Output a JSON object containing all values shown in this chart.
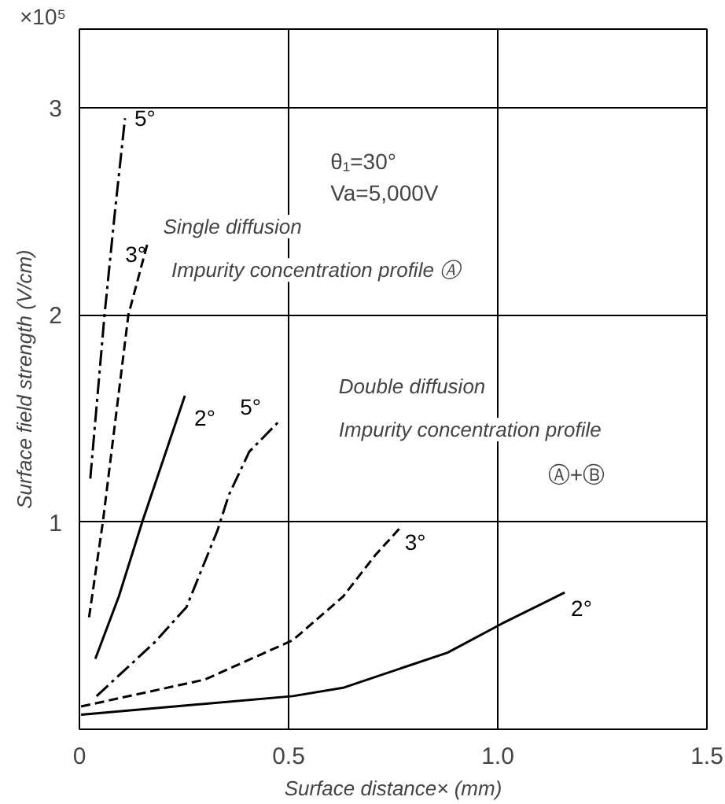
{
  "chart_data": {
    "type": "line",
    "xlabel": "Surface distance× (mm)",
    "ylabel": "Surface field strength (V/cm)",
    "xlim": [
      0,
      1.5
    ],
    "ylim": [
      0,
      3.38
    ],
    "xticks": [
      0,
      0.5,
      {
        "value": 1.0,
        "label": "1.0"
      },
      1.5
    ],
    "yticks": [
      1,
      2,
      3
    ],
    "grid": true,
    "annotations": [
      "×10⁵",
      "θ₁=30°",
      "Va=5,000V",
      "Single diffusion",
      "Impurity concentration profile Ⓐ",
      "Double diffusion",
      "Impurity concentration profile",
      "Ⓐ+Ⓑ"
    ],
    "series": [
      {
        "name": "5°",
        "color": "#000000",
        "line_style": "dashdot",
        "x": [
          0.026,
          0.06,
          0.085,
          0.109
        ],
        "values": [
          1.21,
          2.0,
          2.5,
          2.95
        ]
      },
      {
        "name": "3°",
        "color": "#000000",
        "line_style": "dashed",
        "x": [
          0.023,
          0.056,
          0.117,
          0.162
        ],
        "values": [
          0.54,
          1.0,
          2.0,
          2.34
        ]
      },
      {
        "name": "2°",
        "color": "#000000",
        "line_style": "solid",
        "x": [
          0.038,
          0.094,
          0.15,
          0.252
        ],
        "values": [
          0.34,
          0.64,
          1.0,
          1.61
        ]
      },
      {
        "name": "5°",
        "color": "#000000",
        "line_style": "dashdot",
        "x": [
          0.041,
          0.18,
          0.256,
          0.33,
          0.357,
          0.406,
          0.474
        ],
        "values": [
          0.16,
          0.42,
          0.59,
          0.96,
          1.13,
          1.34,
          1.48
        ]
      },
      {
        "name": "3°",
        "color": "#000000",
        "line_style": "dashed",
        "x": [
          0.004,
          0.3,
          0.51,
          0.63,
          0.707,
          0.77
        ],
        "values": [
          0.11,
          0.24,
          0.43,
          0.64,
          0.84,
          0.98
        ]
      },
      {
        "name": "2°",
        "color": "#000000",
        "line_style": "solid",
        "x": [
          0.004,
          0.51,
          0.63,
          0.88,
          1.01,
          1.16
        ],
        "values": [
          0.07,
          0.16,
          0.2,
          0.37,
          0.51,
          0.66
        ]
      }
    ]
  }
}
